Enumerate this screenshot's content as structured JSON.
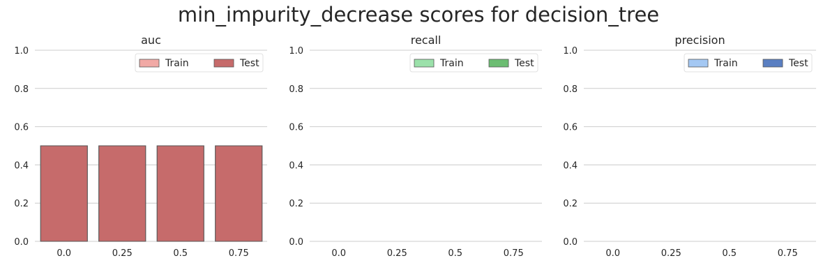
{
  "title": "min_impurity_decrease scores for decision_tree",
  "chart_data": [
    {
      "type": "bar",
      "title": "auc",
      "categories": [
        "0.0",
        "0.25",
        "0.5",
        "0.75"
      ],
      "ylim": [
        0,
        1.0
      ],
      "yticks": [
        "0.0",
        "0.2",
        "0.4",
        "0.6",
        "0.8",
        "1.0"
      ],
      "grid": true,
      "legend_position": "top-right",
      "series": [
        {
          "name": "Train",
          "color": "#f1a9a5",
          "values": [
            0.5,
            0.5,
            0.5,
            0.5
          ]
        },
        {
          "name": "Test",
          "color": "#c66b6b",
          "values": [
            0.5,
            0.5,
            0.5,
            0.5
          ]
        }
      ]
    },
    {
      "type": "bar",
      "title": "recall",
      "categories": [
        "0.0",
        "0.25",
        "0.5",
        "0.75"
      ],
      "ylim": [
        0,
        1.0
      ],
      "yticks": [
        "0.0",
        "0.2",
        "0.4",
        "0.6",
        "0.8",
        "1.0"
      ],
      "grid": true,
      "legend_position": "top-right",
      "series": [
        {
          "name": "Train",
          "color": "#9be1aa",
          "values": [
            0.0,
            0.0,
            0.0,
            0.0
          ]
        },
        {
          "name": "Test",
          "color": "#6cbd72",
          "values": [
            0.0,
            0.0,
            0.0,
            0.0
          ]
        }
      ]
    },
    {
      "type": "bar",
      "title": "precision",
      "categories": [
        "0.0",
        "0.25",
        "0.5",
        "0.75"
      ],
      "ylim": [
        0,
        1.0
      ],
      "yticks": [
        "0.0",
        "0.2",
        "0.4",
        "0.6",
        "0.8",
        "1.0"
      ],
      "grid": true,
      "legend_position": "top-right",
      "series": [
        {
          "name": "Train",
          "color": "#a4c8f3",
          "values": [
            0.0,
            0.0,
            0.0,
            0.0
          ]
        },
        {
          "name": "Test",
          "color": "#5a7fc2",
          "values": [
            0.0,
            0.0,
            0.0,
            0.0
          ]
        }
      ]
    }
  ]
}
